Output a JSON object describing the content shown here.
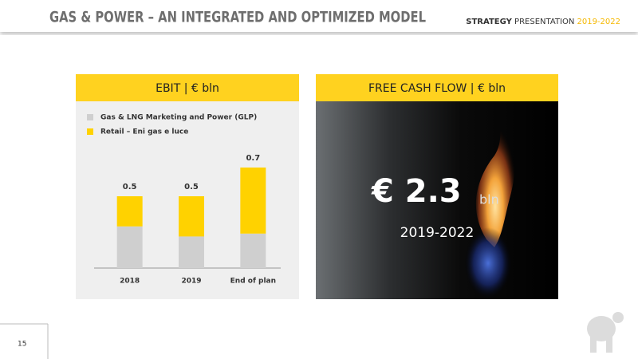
{
  "header": {
    "title": "GAS & POWER – AN INTEGRATED AND OPTIMIZED MODEL",
    "tag_bold": "STRATEGY",
    "tag": "PRESENTATION",
    "tag_years": "2019-2022"
  },
  "chart_data": {
    "type": "stacked_bar",
    "title": "EBIT | € bln",
    "categories": [
      "2018",
      "2019",
      "End of plan"
    ],
    "series": [
      {
        "name": "Gas & LNG Marketing and Power (GLP)",
        "color": "#cfcfcf",
        "values": [
          0.29,
          0.22,
          0.24
        ]
      },
      {
        "name": "Retail – Eni gas e luce",
        "color": "#ffd200",
        "values": [
          0.21,
          0.28,
          0.46
        ]
      }
    ],
    "totals": [
      0.5,
      0.5,
      0.7
    ],
    "ylim": [
      0,
      0.8
    ]
  },
  "cash_flow": {
    "title": "FREE CASH FLOW | € bln",
    "value": "€ 2.3",
    "unit": "bln",
    "period": "2019-2022"
  },
  "page_number": "15"
}
